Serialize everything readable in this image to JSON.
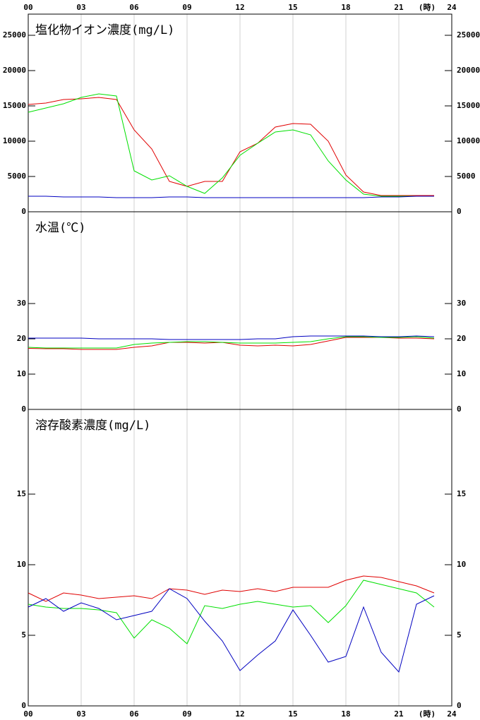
{
  "chart_data": [
    {
      "type": "line",
      "title": "塩化物イオン濃度(mg/L)",
      "xlabel": "(時)",
      "x": [
        0,
        1,
        2,
        3,
        4,
        5,
        6,
        7,
        8,
        9,
        10,
        11,
        12,
        13,
        14,
        15,
        16,
        17,
        18,
        19,
        20,
        21,
        22,
        23
      ],
      "xlim": [
        0,
        24
      ],
      "xticks": [
        {
          "value": 0,
          "label": "00"
        },
        {
          "value": 3,
          "label": "03"
        },
        {
          "value": 6,
          "label": "06"
        },
        {
          "value": 9,
          "label": "09"
        },
        12,
        15,
        18,
        21,
        24
      ],
      "ylim": [
        0,
        28000
      ],
      "yticks": [
        0,
        5000,
        10000,
        15000,
        20000,
        25000
      ],
      "grid": true,
      "series": [
        {
          "color": "#e00000",
          "values": [
            15200,
            15400,
            15900,
            16000,
            16200,
            15900,
            11600,
            8900,
            4300,
            3600,
            4300,
            4300,
            8500,
            9700,
            12000,
            12500,
            12400,
            10000,
            5200,
            2800,
            2300,
            2300,
            2300,
            2300
          ]
        },
        {
          "color": "#00e000",
          "values": [
            14100,
            14700,
            15300,
            16200,
            16700,
            16400,
            5800,
            4500,
            5100,
            3600,
            2600,
            4800,
            8000,
            9700,
            11300,
            11600,
            10900,
            7200,
            4500,
            2500,
            2200,
            2200,
            2200,
            2200
          ]
        },
        {
          "color": "#0000c0",
          "values": [
            2200,
            2200,
            2100,
            2100,
            2100,
            2000,
            2000,
            2000,
            2100,
            2100,
            2000,
            2000,
            2000,
            2000,
            2000,
            2000,
            2000,
            2000,
            2000,
            2000,
            2100,
            2100,
            2200,
            2200
          ]
        }
      ]
    },
    {
      "type": "line",
      "title": "水温(℃)",
      "x": [
        0,
        1,
        2,
        3,
        4,
        5,
        6,
        7,
        8,
        9,
        10,
        11,
        12,
        13,
        14,
        15,
        16,
        17,
        18,
        19,
        20,
        21,
        22,
        23
      ],
      "xlim": [
        0,
        24
      ],
      "xticks": [
        3,
        6,
        9,
        12,
        15,
        18,
        21
      ],
      "ylim": [
        0,
        56
      ],
      "yticks": [
        0,
        10,
        20,
        30
      ],
      "grid": true,
      "series": [
        {
          "color": "#e00000",
          "values": [
            17.3,
            17.2,
            17.2,
            17.0,
            17.0,
            17.0,
            17.6,
            18.0,
            19.0,
            19.0,
            18.8,
            19.0,
            18.2,
            18.0,
            18.2,
            18.0,
            18.4,
            19.4,
            20.4,
            20.4,
            20.4,
            20.2,
            20.2,
            20.0
          ]
        },
        {
          "color": "#00e000",
          "values": [
            17.6,
            17.4,
            17.4,
            17.4,
            17.4,
            17.4,
            18.4,
            18.8,
            19.0,
            19.2,
            19.2,
            19.0,
            18.8,
            18.8,
            18.8,
            19.0,
            19.2,
            20.0,
            20.6,
            20.6,
            20.4,
            20.4,
            20.6,
            20.2
          ]
        },
        {
          "color": "#0000c0",
          "values": [
            20.2,
            20.2,
            20.2,
            20.2,
            20.0,
            20.0,
            20.0,
            20.0,
            19.8,
            19.8,
            19.8,
            19.8,
            19.8,
            20.0,
            20.0,
            20.6,
            20.8,
            20.8,
            20.8,
            20.8,
            20.6,
            20.6,
            20.8,
            20.6
          ]
        }
      ]
    },
    {
      "type": "line",
      "title": "溶存酸素濃度(mg/L)",
      "xlabel": "(時)",
      "x": [
        0,
        1,
        2,
        3,
        4,
        5,
        6,
        7,
        8,
        9,
        10,
        11,
        12,
        13,
        14,
        15,
        16,
        17,
        18,
        19,
        20,
        21,
        22,
        23
      ],
      "xlim": [
        0,
        24
      ],
      "xticks": [
        {
          "value": 0,
          "label": "00"
        },
        {
          "value": 3,
          "label": "03"
        },
        {
          "value": 6,
          "label": "06"
        },
        {
          "value": 9,
          "label": "09"
        },
        12,
        15,
        18,
        21,
        24
      ],
      "ylim": [
        0,
        21
      ],
      "yticks": [
        0,
        5,
        10,
        15
      ],
      "grid": true,
      "series": [
        {
          "color": "#e00000",
          "values": [
            8.0,
            7.4,
            8.0,
            7.85,
            7.6,
            7.7,
            7.8,
            7.6,
            8.3,
            8.2,
            7.9,
            8.2,
            8.1,
            8.3,
            8.1,
            8.4,
            8.4,
            8.4,
            8.9,
            9.2,
            9.1,
            8.8,
            8.5,
            8.0
          ]
        },
        {
          "color": "#00e000",
          "values": [
            7.2,
            7.0,
            6.9,
            6.9,
            6.8,
            6.6,
            4.8,
            6.1,
            5.5,
            4.4,
            7.1,
            6.9,
            7.2,
            7.4,
            7.2,
            7.0,
            7.1,
            5.9,
            7.1,
            8.9,
            8.6,
            8.3,
            8.0,
            7.0
          ]
        },
        {
          "color": "#0000c0",
          "values": [
            7.0,
            7.6,
            6.7,
            7.3,
            6.9,
            6.1,
            6.4,
            6.7,
            8.3,
            7.6,
            6.0,
            4.6,
            2.5,
            3.6,
            4.6,
            6.8,
            5.0,
            3.1,
            3.5,
            7.0,
            3.8,
            2.4,
            7.2,
            7.8
          ]
        }
      ]
    }
  ]
}
